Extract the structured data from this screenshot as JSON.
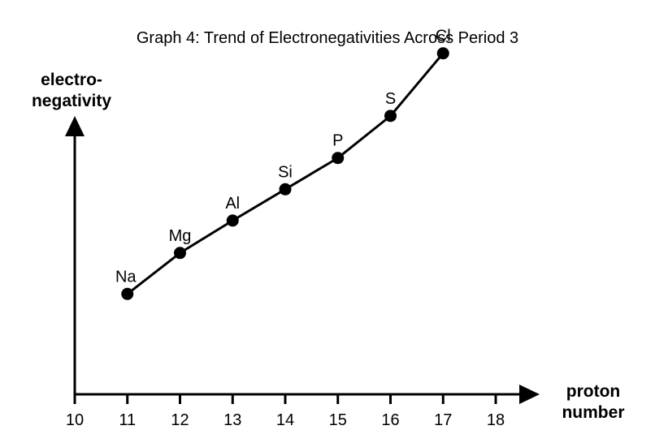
{
  "chart_data": {
    "type": "line",
    "title": "Graph 4: Trend of Electronegativities Across Period 3",
    "ylabel": [
      "electro-",
      "negativity"
    ],
    "xlabel": [
      "proton",
      "number"
    ],
    "x_ticks": [
      10,
      11,
      12,
      13,
      14,
      15,
      16,
      17,
      18
    ],
    "xlim": [
      10,
      18
    ],
    "ylim": [
      0,
      4
    ],
    "y_ticks_shown": false,
    "grid": false,
    "series": [
      {
        "x": [
          11,
          12,
          13,
          14,
          15,
          16,
          17
        ],
        "y": [
          0.93,
          1.31,
          1.61,
          1.9,
          2.19,
          2.58,
          3.16
        ],
        "point_labels": [
          "Na",
          "Mg",
          "Al",
          "Si",
          "P",
          "S",
          "Cl"
        ]
      }
    ],
    "colors": {
      "line": "#000000",
      "marker": "#000000"
    }
  }
}
